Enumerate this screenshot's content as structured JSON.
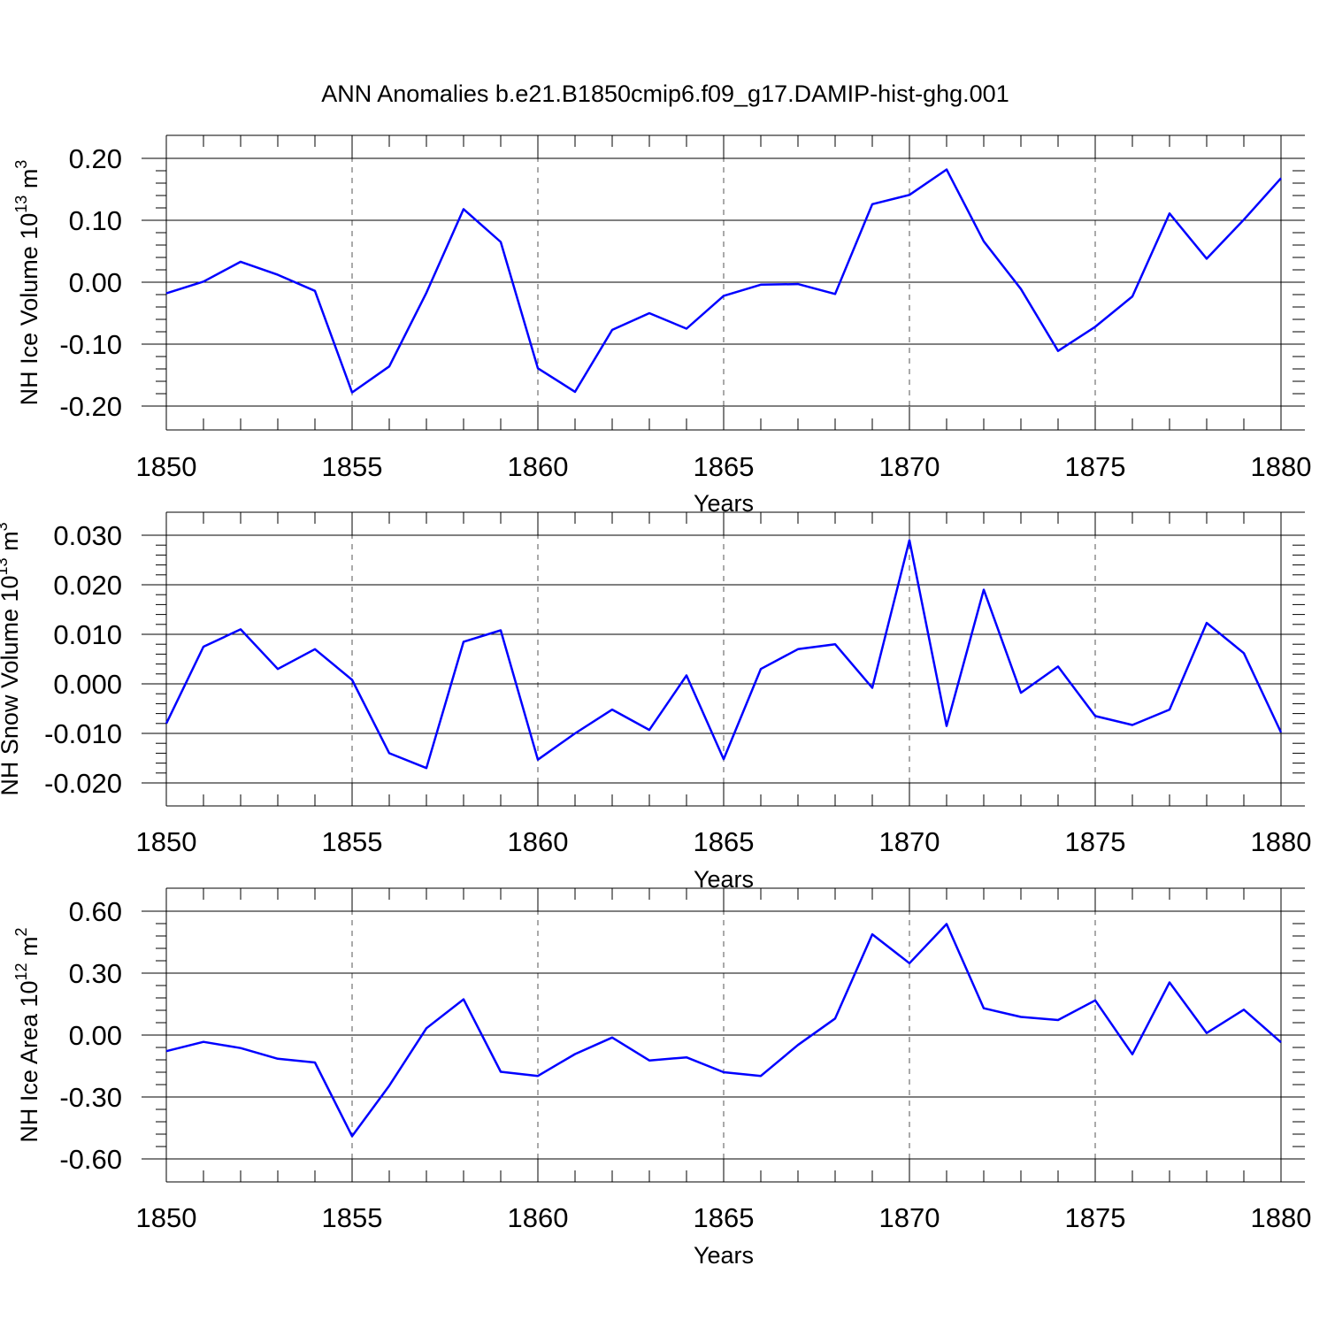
{
  "page_title": "ANN Anomalies b.e21.B1850cmip6.f09_g17.DAMIP-hist-ghg.001",
  "colors": {
    "line": "#0000ff",
    "frame": "#000000",
    "grid": "#555555"
  },
  "chart_data": [
    {
      "type": "line",
      "xlabel": "Years",
      "ylabel": "NH Ice Volume 10",
      "ylabel_exp": "13",
      "ylabel_unit": " m",
      "ylabel_unit_exp": "3",
      "xlim": [
        1850,
        1880
      ],
      "ylim": [
        -0.2,
        0.2
      ],
      "x_ticks": [
        "1850",
        "1855",
        "1860",
        "1865",
        "1870",
        "1875",
        "1880"
      ],
      "y_ticks": [
        "0.20",
        "0.10",
        "0.00",
        "-0.10",
        "-0.20"
      ],
      "y_tick_values": [
        0.2,
        0.1,
        0.0,
        -0.1,
        -0.2
      ],
      "grid": "dashed vertical at major x ticks",
      "x": [
        1850,
        1851,
        1852,
        1853,
        1854,
        1855,
        1856,
        1857,
        1858,
        1859,
        1860,
        1861,
        1862,
        1863,
        1864,
        1865,
        1866,
        1867,
        1868,
        1869,
        1870,
        1871,
        1872,
        1873,
        1874,
        1875,
        1876,
        1877,
        1878,
        1879,
        1880
      ],
      "values": [
        -0.018,
        0.001,
        0.033,
        0.012,
        -0.014,
        -0.178,
        -0.136,
        -0.017,
        0.118,
        0.065,
        -0.139,
        -0.177,
        -0.077,
        -0.05,
        -0.075,
        -0.022,
        -0.004,
        -0.003,
        -0.019,
        0.126,
        0.141,
        0.182,
        0.066,
        -0.011,
        -0.111,
        -0.072,
        -0.023,
        0.111,
        0.038,
        0.101,
        0.168
      ]
    },
    {
      "type": "line",
      "xlabel": "Years",
      "ylabel": "NH Snow Volume 10",
      "ylabel_exp": "13",
      "ylabel_unit": " m",
      "ylabel_unit_exp": "3",
      "xlim": [
        1850,
        1880
      ],
      "ylim": [
        -0.02,
        0.03
      ],
      "x_ticks": [
        "1850",
        "1855",
        "1860",
        "1865",
        "1870",
        "1875",
        "1880"
      ],
      "y_ticks": [
        "0.030",
        "0.020",
        "0.010",
        "0.000",
        "-0.010",
        "-0.020"
      ],
      "y_tick_values": [
        0.03,
        0.02,
        0.01,
        0.0,
        -0.01,
        -0.02
      ],
      "grid": "dashed vertical at major x ticks",
      "x": [
        1850,
        1851,
        1852,
        1853,
        1854,
        1855,
        1856,
        1857,
        1858,
        1859,
        1860,
        1861,
        1862,
        1863,
        1864,
        1865,
        1866,
        1867,
        1868,
        1869,
        1870,
        1871,
        1872,
        1873,
        1874,
        1875,
        1876,
        1877,
        1878,
        1879,
        1880
      ],
      "values": [
        -0.008,
        0.0075,
        0.011,
        0.003,
        0.007,
        0.0008,
        -0.014,
        -0.017,
        0.0085,
        0.0108,
        -0.0153,
        -0.01,
        -0.0052,
        -0.0093,
        0.0017,
        -0.0152,
        0.003,
        0.007,
        0.008,
        -0.0008,
        0.029,
        -0.0085,
        0.019,
        -0.0018,
        0.0035,
        -0.0065,
        -0.0083,
        -0.0052,
        0.0123,
        0.0062,
        -0.0098
      ]
    },
    {
      "type": "line",
      "xlabel": "Years",
      "ylabel": "NH Ice Area 10",
      "ylabel_exp": "12",
      "ylabel_unit": " m",
      "ylabel_unit_exp": "2",
      "xlim": [
        1850,
        1880
      ],
      "ylim": [
        -0.6,
        0.6
      ],
      "x_ticks": [
        "1850",
        "1855",
        "1860",
        "1865",
        "1870",
        "1875",
        "1880"
      ],
      "y_ticks": [
        "0.60",
        "0.30",
        "0.00",
        "-0.30",
        "-0.60"
      ],
      "y_tick_values": [
        0.6,
        0.3,
        0.0,
        -0.3,
        -0.6
      ],
      "grid": "dashed vertical at major x ticks",
      "x": [
        1850,
        1851,
        1852,
        1853,
        1854,
        1855,
        1856,
        1857,
        1858,
        1859,
        1860,
        1861,
        1862,
        1863,
        1864,
        1865,
        1866,
        1867,
        1868,
        1869,
        1870,
        1871,
        1872,
        1873,
        1874,
        1875,
        1876,
        1877,
        1878,
        1879,
        1880
      ],
      "values": [
        -0.078,
        -0.033,
        -0.063,
        -0.115,
        -0.133,
        -0.49,
        -0.245,
        0.033,
        0.173,
        -0.178,
        -0.198,
        -0.092,
        -0.012,
        -0.123,
        -0.108,
        -0.18,
        -0.198,
        -0.048,
        0.08,
        0.488,
        0.348,
        0.538,
        0.13,
        0.088,
        0.073,
        0.168,
        -0.093,
        0.255,
        0.01,
        0.123,
        -0.035
      ]
    }
  ]
}
